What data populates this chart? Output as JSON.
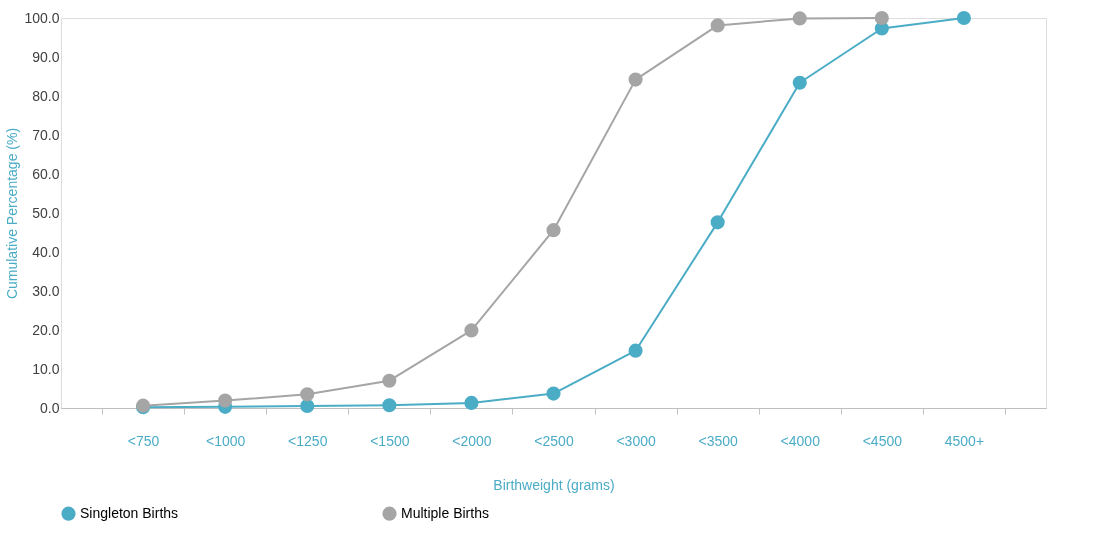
{
  "chart_data": {
    "type": "line",
    "xlabel": "Birthweight (grams)",
    "ylabel": "Cumulative Percentage (%)",
    "categories": [
      "<750",
      "<1000",
      "<1250",
      "<1500",
      "<2000",
      "<2500",
      "<3000",
      "<3500",
      "<4000",
      "<4500",
      "4500+"
    ],
    "series": [
      {
        "name": "Singleton Births",
        "color": "#4bacc6",
        "values": [
          0.2,
          0.3,
          0.5,
          0.7,
          1.3,
          3.7,
          14.7,
          47.6,
          83.4,
          97.3,
          100.0
        ]
      },
      {
        "name": "Multiple Births",
        "color": "#a5a5a5",
        "values": [
          0.6,
          1.9,
          3.5,
          7.0,
          19.9,
          45.6,
          84.2,
          98.1,
          99.9,
          100.0,
          null
        ]
      }
    ],
    "ylim": [
      0,
      100
    ],
    "yticks": [
      {
        "value": 0,
        "label": "0.0"
      },
      {
        "value": 10,
        "label": "10.0"
      },
      {
        "value": 20,
        "label": "20.0"
      },
      {
        "value": 30,
        "label": "30.0"
      },
      {
        "value": 40,
        "label": "40.0"
      },
      {
        "value": 50,
        "label": "50.0"
      },
      {
        "value": 60,
        "label": "60.0"
      },
      {
        "value": 70,
        "label": "70.0"
      },
      {
        "value": 80,
        "label": "80.0"
      },
      {
        "value": 90,
        "label": "90.0"
      },
      {
        "value": 100,
        "label": "100.0"
      }
    ],
    "grid": false,
    "legend": "bottom left",
    "marker": "circle",
    "line_style": "solid"
  }
}
